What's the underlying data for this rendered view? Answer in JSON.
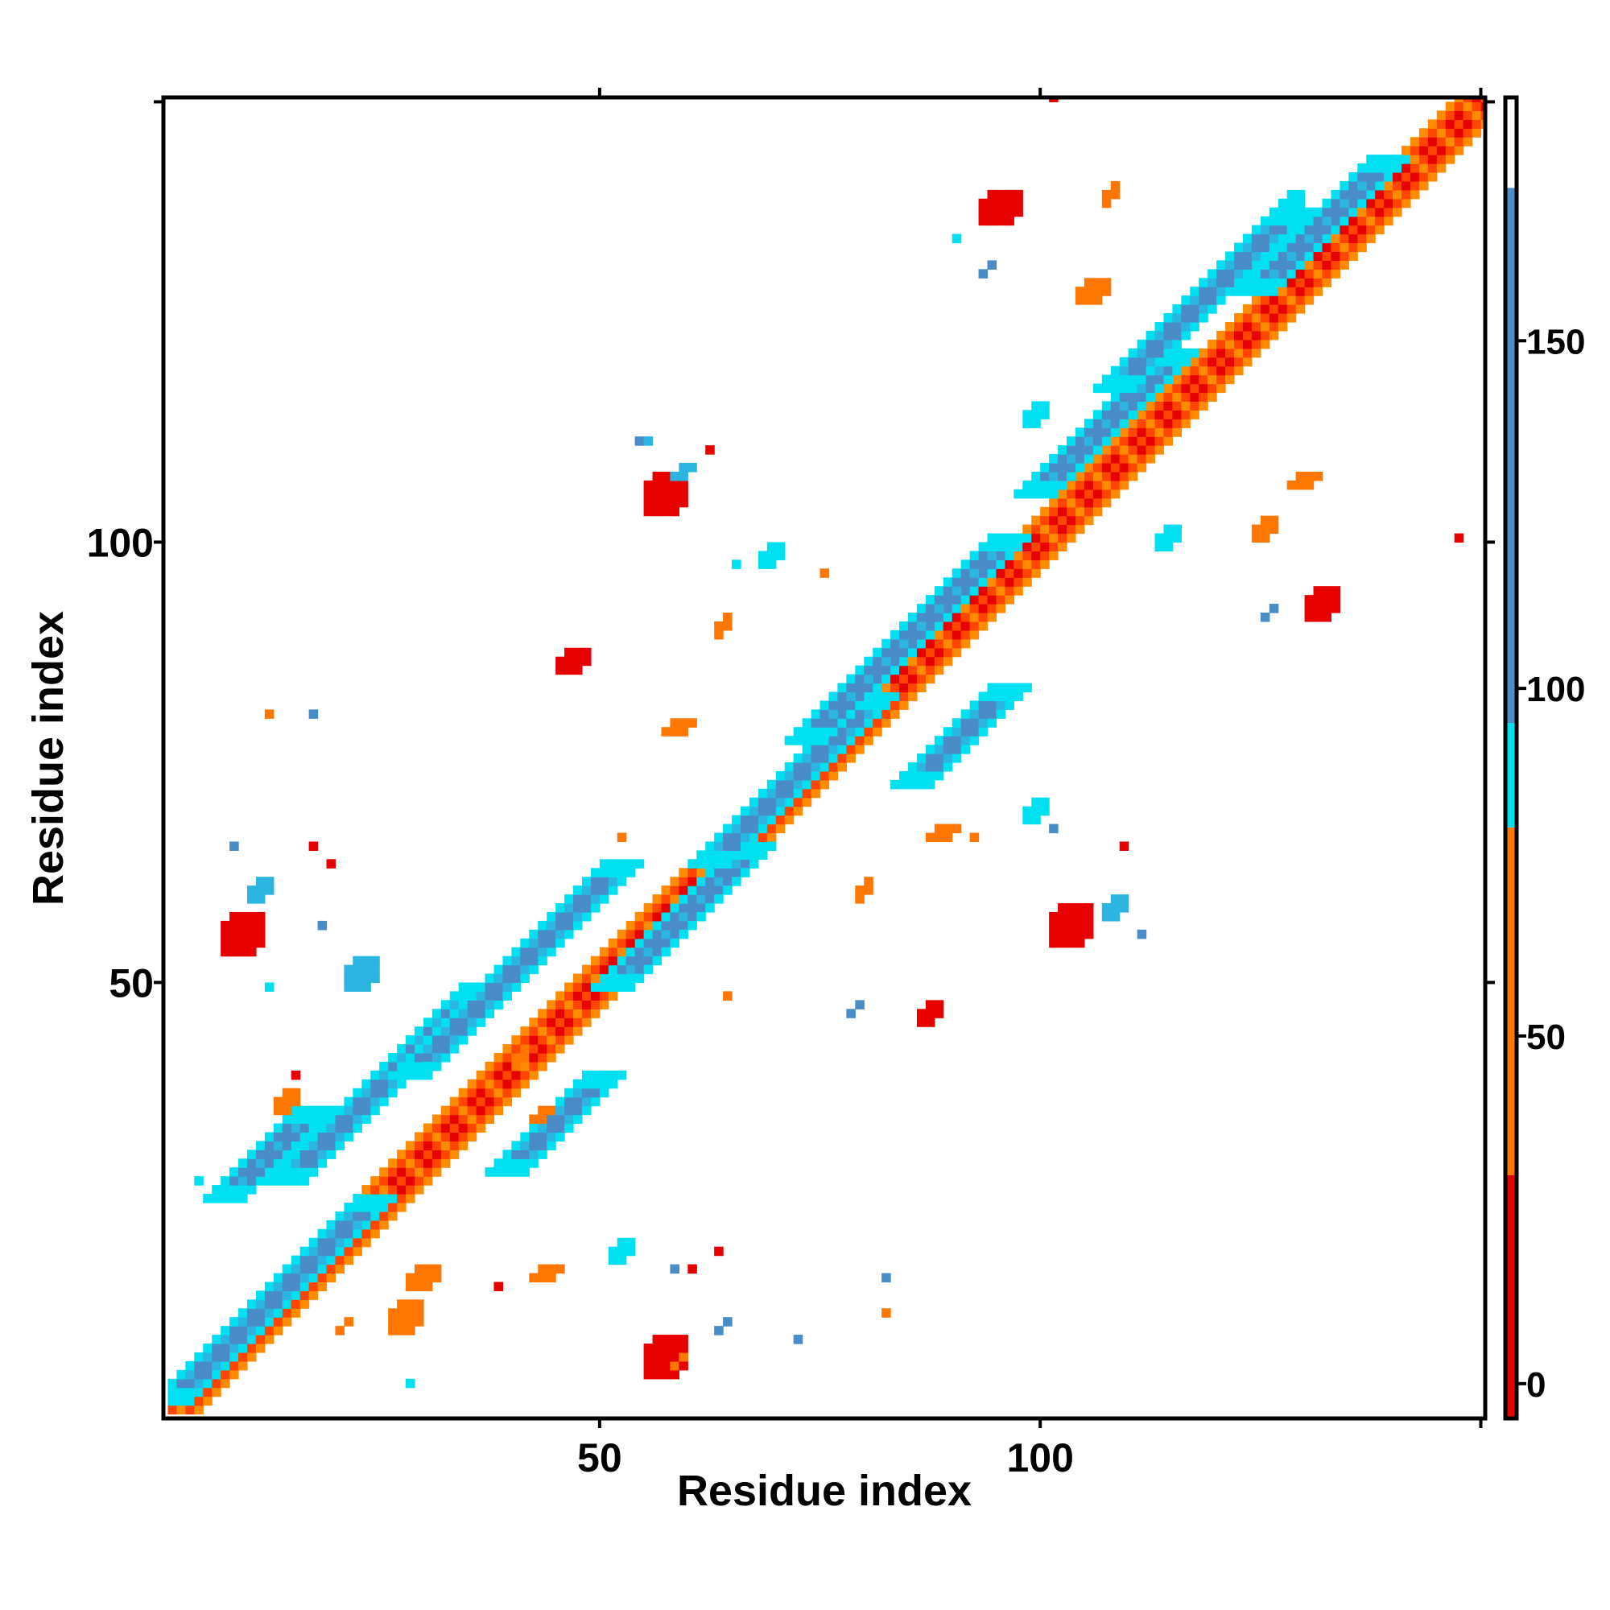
{
  "chart_data": {
    "type": "heatmap",
    "title": "",
    "xlabel": "Residue index",
    "ylabel": "Residue index",
    "xlim": [
      1,
      150
    ],
    "ylim": [
      1,
      150
    ],
    "x_ticks": [
      50,
      100
    ],
    "y_ticks": [
      50,
      100
    ],
    "grid": false,
    "legend": "colorbar-right",
    "colorbar": {
      "range": [
        -5,
        185
      ],
      "ticks": [
        0,
        50,
        100,
        150
      ],
      "bins": [
        {
          "min": -5,
          "max": 30,
          "color": "#e60000"
        },
        {
          "min": 30,
          "max": 80,
          "color": "#ff7700"
        },
        {
          "min": 80,
          "max": 95,
          "color": "#00e0f0"
        },
        {
          "min": 95,
          "max": 172,
          "color": "#4a90c8"
        },
        {
          "min": 172,
          "max": 185,
          "color": "#ffffff"
        }
      ]
    },
    "colors": {
      "strong_red": "#e60000",
      "red_orange": "#ff4500",
      "orange": "#ff8c00",
      "cyan": "#00e0f0",
      "light_blue": "#2bb5e0",
      "steel_blue": "#4a8cc8"
    },
    "segments": [
      {
        "kind": "diagonal",
        "from": [
          1,
          1
        ],
        "to": [
          150,
          150
        ],
        "palette": "warm",
        "width": 3
      },
      {
        "kind": "anti",
        "from": [
          1,
          2
        ],
        "to": [
          24,
          25
        ],
        "palette": "cool",
        "width": 2.6
      },
      {
        "kind": "anti",
        "from": [
          14,
          27
        ],
        "to": [
          36,
          49
        ],
        "palette": "cool",
        "width": 2.6
      },
      {
        "kind": "anti",
        "from": [
          28,
          39
        ],
        "to": [
          52,
          63
        ],
        "palette": "cool",
        "width": 2.6
      },
      {
        "kind": "anti",
        "from": [
          51,
          49
        ],
        "to": [
          67,
          65
        ],
        "palette": "cool",
        "width": 2.4
      },
      {
        "kind": "anti",
        "from": [
          62,
          63
        ],
        "to": [
          81,
          82
        ],
        "palette": "cool",
        "width": 2.4
      },
      {
        "kind": "anti",
        "from": [
          73,
          77
        ],
        "to": [
          96,
          100
        ],
        "palette": "cool",
        "width": 2.6
      },
      {
        "kind": "anti",
        "from": [
          99,
          105
        ],
        "to": [
          115,
          121
        ],
        "palette": "cool",
        "width": 2.6
      },
      {
        "kind": "anti",
        "from": [
          108,
          117
        ],
        "to": [
          128,
          137
        ],
        "palette": "cool",
        "width": 2.6
      },
      {
        "kind": "anti",
        "from": [
          124,
          128
        ],
        "to": [
          139,
          143
        ],
        "palette": "cool",
        "width": 2.6
      },
      {
        "kind": "anti",
        "from": [
          7,
          25
        ],
        "to": [
          17,
          35
        ],
        "palette": "cool",
        "width": 2.2
      },
      {
        "kind": "anti",
        "from": [
          39,
          28
        ],
        "to": [
          50,
          39
        ],
        "palette": "cool",
        "width": 2.2
      },
      {
        "kind": "anti",
        "from": [
          85,
          72
        ],
        "to": [
          96,
          83
        ],
        "palette": "cool",
        "width": 2.2
      }
    ],
    "clusters": [
      {
        "x": 7,
        "y": 53,
        "w": 5,
        "h": 5,
        "color": "#e60000"
      },
      {
        "x": 55,
        "y": 103,
        "w": 5,
        "h": 5,
        "color": "#e60000"
      },
      {
        "x": 55,
        "y": 5,
        "w": 5,
        "h": 5,
        "color": "#e60000"
      },
      {
        "x": 101,
        "y": 54,
        "w": 5,
        "h": 5,
        "color": "#e60000"
      },
      {
        "x": 93,
        "y": 136,
        "w": 5,
        "h": 4,
        "color": "#e60000"
      },
      {
        "x": 130,
        "y": 91,
        "w": 4,
        "h": 4,
        "color": "#e60000"
      },
      {
        "x": 45,
        "y": 85,
        "w": 4,
        "h": 3,
        "color": "#e60000"
      },
      {
        "x": 86,
        "y": 45,
        "w": 3,
        "h": 3,
        "color": "#e60000"
      },
      {
        "x": 26,
        "y": 10,
        "w": 4,
        "h": 4,
        "color": "#ff7700"
      },
      {
        "x": 28,
        "y": 15,
        "w": 4,
        "h": 3,
        "color": "#ff7700"
      },
      {
        "x": 40,
        "y": 40,
        "w": 2,
        "h": 3,
        "color": "#ff7700"
      },
      {
        "x": 42,
        "y": 34,
        "w": 3,
        "h": 2,
        "color": "#ff7700"
      },
      {
        "x": 63,
        "y": 89,
        "w": 2,
        "h": 3,
        "color": "#ff7700"
      },
      {
        "x": 107,
        "y": 138,
        "w": 2,
        "h": 3,
        "color": "#ff7700"
      },
      {
        "x": 128,
        "y": 106,
        "w": 4,
        "h": 2,
        "color": "#ff7700"
      },
      {
        "x": 124,
        "y": 100,
        "w": 3,
        "h": 3,
        "color": "#ff7700"
      },
      {
        "x": 104,
        "y": 127,
        "w": 4,
        "h": 3,
        "color": "#ff7700"
      },
      {
        "x": 87,
        "y": 66,
        "w": 4,
        "h": 2,
        "color": "#ff7700"
      },
      {
        "x": 79,
        "y": 59,
        "w": 2,
        "h": 3,
        "color": "#ff7700"
      },
      {
        "x": 57,
        "y": 78,
        "w": 4,
        "h": 2,
        "color": "#ff7700"
      },
      {
        "x": 42,
        "y": 16,
        "w": 4,
        "h": 2,
        "color": "#ff7700"
      },
      {
        "x": 13,
        "y": 35,
        "w": 3,
        "h": 3,
        "color": "#ff7700"
      },
      {
        "x": 20,
        "y": 10,
        "w": 2,
        "h": 2,
        "color": "#ff7700"
      },
      {
        "x": 51,
        "y": 18,
        "w": 3,
        "h": 3,
        "color": "#00e0f0"
      },
      {
        "x": 58,
        "y": 6,
        "w": 2,
        "h": 2,
        "color": "#ff7700"
      },
      {
        "x": 68,
        "y": 97,
        "w": 3,
        "h": 3,
        "color": "#00e0f0"
      },
      {
        "x": 98,
        "y": 68,
        "w": 3,
        "h": 3,
        "color": "#00e0f0"
      },
      {
        "x": 98,
        "y": 113,
        "w": 3,
        "h": 3,
        "color": "#00e0f0"
      },
      {
        "x": 127,
        "y": 137,
        "w": 3,
        "h": 3,
        "color": "#00e0f0"
      },
      {
        "x": 113,
        "y": 99,
        "w": 3,
        "h": 3,
        "color": "#00e0f0"
      },
      {
        "x": 21,
        "y": 49,
        "w": 4,
        "h": 4,
        "color": "#2bb5e0"
      },
      {
        "x": 10,
        "y": 59,
        "w": 3,
        "h": 3,
        "color": "#2bb5e0"
      },
      {
        "x": 58,
        "y": 107,
        "w": 3,
        "h": 2,
        "color": "#2bb5e0"
      },
      {
        "x": 107,
        "y": 57,
        "w": 3,
        "h": 3,
        "color": "#2bb5e0"
      },
      {
        "x": 63,
        "y": 10,
        "w": 2,
        "h": 2,
        "color": "#4a8cc8"
      },
      {
        "x": 93,
        "y": 130,
        "w": 2,
        "h": 2,
        "color": "#4a8cc8"
      },
      {
        "x": 90,
        "y": 132,
        "w": 2,
        "h": 1,
        "color": "#00e0f0"
      },
      {
        "x": 125,
        "y": 91,
        "w": 2,
        "h": 2,
        "color": "#4a8cc8"
      },
      {
        "x": 47,
        "y": 77,
        "w": 2,
        "h": 1,
        "color": "#4a8cc8"
      },
      {
        "x": 78,
        "y": 46,
        "w": 2,
        "h": 2,
        "color": "#4a8cc8"
      }
    ],
    "points": [
      {
        "x": 101,
        "y": 150,
        "color": "#e60000"
      },
      {
        "x": 147,
        "y": 100,
        "color": "#e60000"
      },
      {
        "x": 12,
        "y": 80,
        "color": "#ff7700"
      },
      {
        "x": 17,
        "y": 80,
        "color": "#4a8cc8"
      },
      {
        "x": 8,
        "y": 65,
        "color": "#4a8cc8"
      },
      {
        "x": 19,
        "y": 63,
        "color": "#e60000"
      },
      {
        "x": 17,
        "y": 65,
        "color": "#e60000"
      },
      {
        "x": 18,
        "y": 56,
        "color": "#4a8cc8"
      },
      {
        "x": 65,
        "y": 97,
        "color": "#00e0f0"
      },
      {
        "x": 62,
        "y": 110,
        "color": "#e60000"
      },
      {
        "x": 54,
        "y": 111,
        "color": "#4a8cc8"
      },
      {
        "x": 52,
        "y": 66,
        "color": "#ff7700"
      },
      {
        "x": 64,
        "y": 48,
        "color": "#ff7700"
      },
      {
        "x": 101,
        "y": 67,
        "color": "#4a8cc8"
      },
      {
        "x": 109,
        "y": 65,
        "color": "#e60000"
      },
      {
        "x": 111,
        "y": 55,
        "color": "#4a8cc8"
      },
      {
        "x": 92,
        "y": 66,
        "color": "#ff7700"
      },
      {
        "x": 82,
        "y": 16,
        "color": "#4a8cc8"
      },
      {
        "x": 82,
        "y": 12,
        "color": "#ff7700"
      },
      {
        "x": 63,
        "y": 19,
        "color": "#e60000"
      },
      {
        "x": 60,
        "y": 17,
        "color": "#e60000"
      },
      {
        "x": 58,
        "y": 17,
        "color": "#4a8cc8"
      },
      {
        "x": 38,
        "y": 15,
        "color": "#e60000"
      },
      {
        "x": 15,
        "y": 39,
        "color": "#e60000"
      },
      {
        "x": 4,
        "y": 27,
        "color": "#00e0f0"
      },
      {
        "x": 28,
        "y": 4,
        "color": "#00e0f0"
      },
      {
        "x": 72,
        "y": 9,
        "color": "#4a8cc8"
      },
      {
        "x": 12,
        "y": 49,
        "color": "#00e0f0"
      },
      {
        "x": 55,
        "y": 111,
        "color": "#2bb5e0"
      },
      {
        "x": 75,
        "y": 96,
        "color": "#ff7700"
      },
      {
        "x": 90,
        "y": 134,
        "color": "#00e0f0"
      }
    ]
  }
}
